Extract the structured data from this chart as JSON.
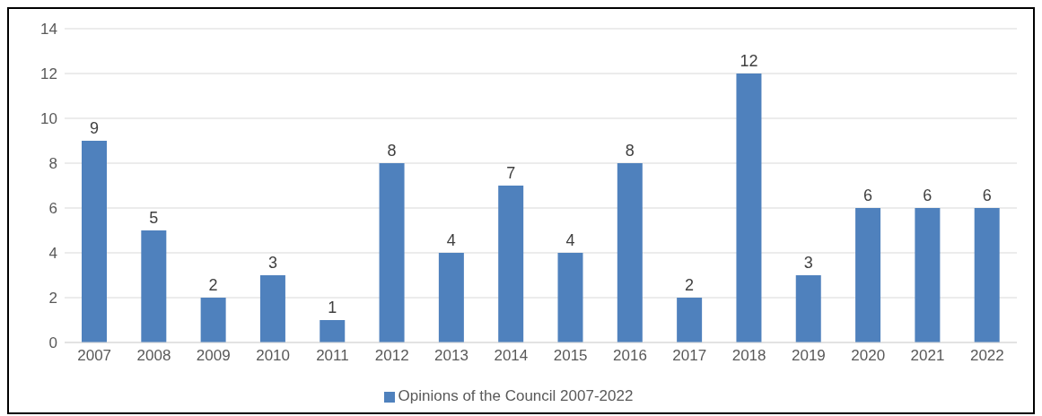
{
  "chart_data": {
    "type": "bar",
    "categories": [
      "2007",
      "2008",
      "2009",
      "2010",
      "2011",
      "2012",
      "2013",
      "2014",
      "2015",
      "2016",
      "2017",
      "2018",
      "2019",
      "2020",
      "2021",
      "2022"
    ],
    "series": [
      {
        "name": "Opinions of the Council 2007-2022",
        "color": "#4f81bd",
        "values": [
          9,
          5,
          2,
          3,
          1,
          8,
          4,
          7,
          4,
          8,
          2,
          12,
          3,
          6,
          6,
          6
        ]
      }
    ],
    "ylim": [
      0,
      14
    ],
    "yticks": [
      0,
      2,
      4,
      6,
      8,
      10,
      12,
      14
    ],
    "grid": "y",
    "legend": "bottom",
    "data_labels": true
  }
}
